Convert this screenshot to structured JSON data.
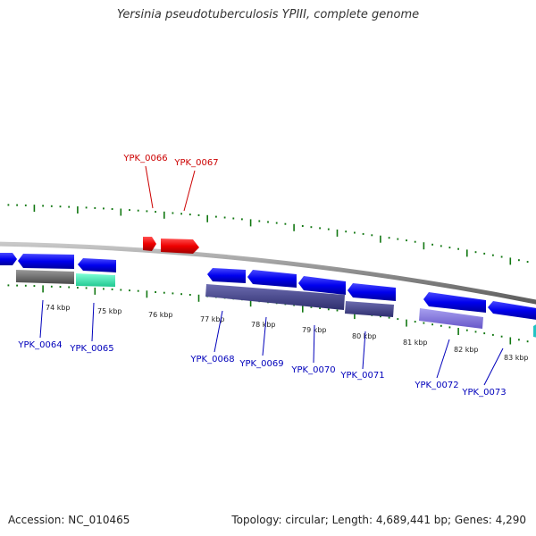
{
  "title": "Yersinia pseudotuberculosis YPIII, complete genome",
  "footer": {
    "accession": "Accession: NC_010465",
    "summary": "Topology: circular; Length: 4,689,441 bp; Genes: 4,290"
  },
  "ticks": [
    "74 kbp",
    "75 kbp",
    "76 kbp",
    "77 kbp",
    "78 kbp",
    "79 kbp",
    "80 kbp",
    "81 kbp",
    "82 kbp",
    "83 kbp"
  ],
  "genes_top": [
    "YPK_0066",
    "YPK_0067"
  ],
  "genes_bottom": [
    "YPK_0064",
    "YPK_0065",
    "YPK_0068",
    "YPK_0069",
    "YPK_0070",
    "YPK_0071",
    "YPK_0072",
    "YPK_0073"
  ],
  "colors": {
    "forward_gene": "#e00000",
    "reverse_gene": "#0000dd",
    "label_red": "#cc0000",
    "label_blue": "#0000bb",
    "tick": "#117711",
    "backbone": "#8a8a8a"
  }
}
